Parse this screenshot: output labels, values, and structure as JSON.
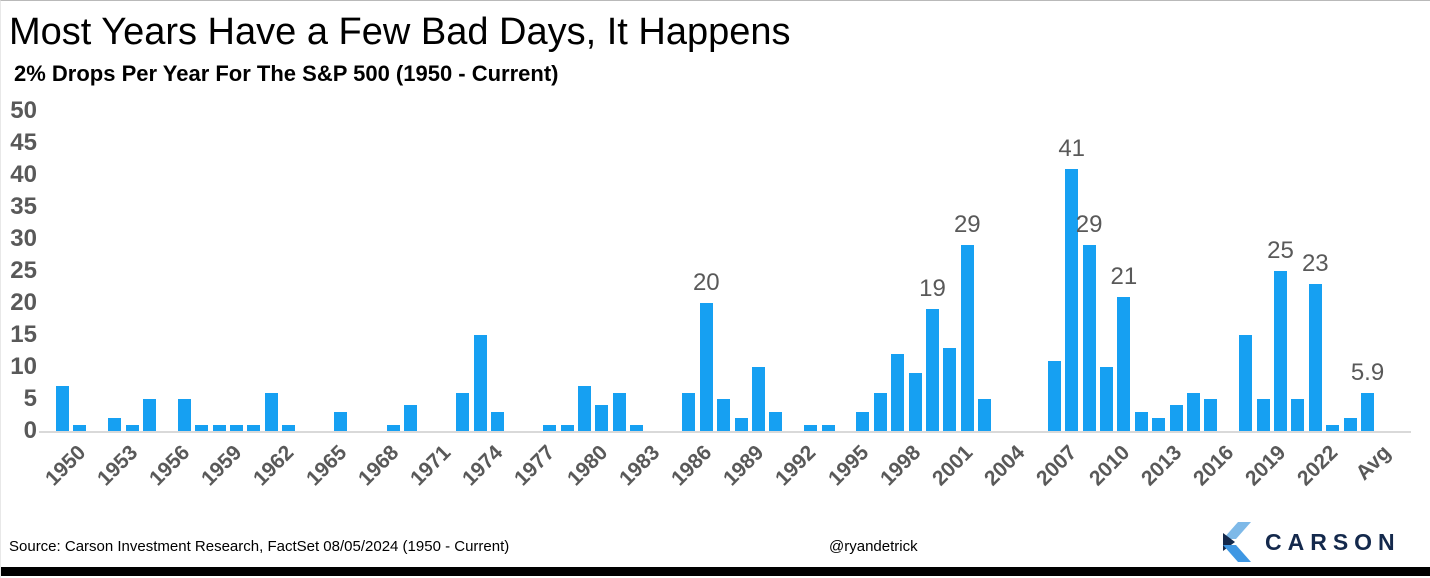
{
  "header": {
    "title": "Most Years Have a Few Bad Days, It Happens",
    "subtitle": "2% Drops Per Year For The S&P 500 (1950 - Current)"
  },
  "chart_data": {
    "type": "bar",
    "title": "Most Years Have a Few Bad Days, It Happens",
    "subtitle": "2% Drops Per Year For The S&P 500 (1950 - Current)",
    "xlabel": "",
    "ylabel": "",
    "ylim": [
      0,
      50
    ],
    "y_ticks": [
      0,
      5,
      10,
      15,
      20,
      25,
      30,
      35,
      40,
      45,
      50
    ],
    "grid": false,
    "bar_color": "#16A0F2",
    "axis_text_color": "#595959",
    "categories": [
      "1950",
      "1951",
      "1952",
      "1953",
      "1954",
      "1955",
      "1956",
      "1957",
      "1958",
      "1959",
      "1960",
      "1961",
      "1962",
      "1963",
      "1964",
      "1965",
      "1966",
      "1967",
      "1968",
      "1969",
      "1970",
      "1971",
      "1972",
      "1973",
      "1974",
      "1975",
      "1976",
      "1977",
      "1978",
      "1979",
      "1980",
      "1981",
      "1982",
      "1983",
      "1984",
      "1985",
      "1986",
      "1987",
      "1988",
      "1989",
      "1990",
      "1991",
      "1992",
      "1993",
      "1994",
      "1995",
      "1996",
      "1997",
      "1998",
      "1999",
      "2000",
      "2001",
      "2002",
      "2003",
      "2004",
      "2005",
      "2006",
      "2007",
      "2008",
      "2009",
      "2010",
      "2011",
      "2012",
      "2013",
      "2014",
      "2015",
      "2016",
      "2017",
      "2018",
      "2019",
      "2020",
      "2021",
      "2022",
      "2023",
      "2024",
      "Avg"
    ],
    "values": [
      7,
      1,
      0,
      2,
      1,
      5,
      0,
      5,
      1,
      1,
      1,
      1,
      6,
      1,
      0,
      0,
      3,
      0,
      0,
      1,
      4,
      0,
      0,
      6,
      15,
      3,
      0,
      0,
      1,
      1,
      7,
      4,
      6,
      1,
      0,
      0,
      6,
      20,
      5,
      2,
      10,
      3,
      0,
      1,
      1,
      0,
      3,
      6,
      12,
      9,
      19,
      13,
      29,
      5,
      0,
      0,
      0,
      11,
      41,
      29,
      10,
      21,
      3,
      2,
      4,
      6,
      5,
      0,
      15,
      5,
      25,
      5,
      23,
      1,
      2,
      5.9
    ],
    "x_tick_labels": [
      "1950",
      "1953",
      "1956",
      "1959",
      "1962",
      "1965",
      "1968",
      "1971",
      "1974",
      "1977",
      "1980",
      "1983",
      "1986",
      "1989",
      "1992",
      "1995",
      "1998",
      "2001",
      "2004",
      "2007",
      "2010",
      "2013",
      "2016",
      "2019",
      "2022",
      "Avg"
    ],
    "bar_labels": {
      "1987": "20",
      "2000": "19",
      "2002": "29",
      "2008": "41",
      "2009": "29",
      "2011": "21",
      "2020": "25",
      "2022": "23",
      "Avg": "5.9"
    }
  },
  "footer": {
    "source": "Source: Carson Investment Research, FactSet 08/05/2024 (1950 - Current)",
    "handle": "@ryandetrick",
    "logo_text": "CARSON"
  }
}
